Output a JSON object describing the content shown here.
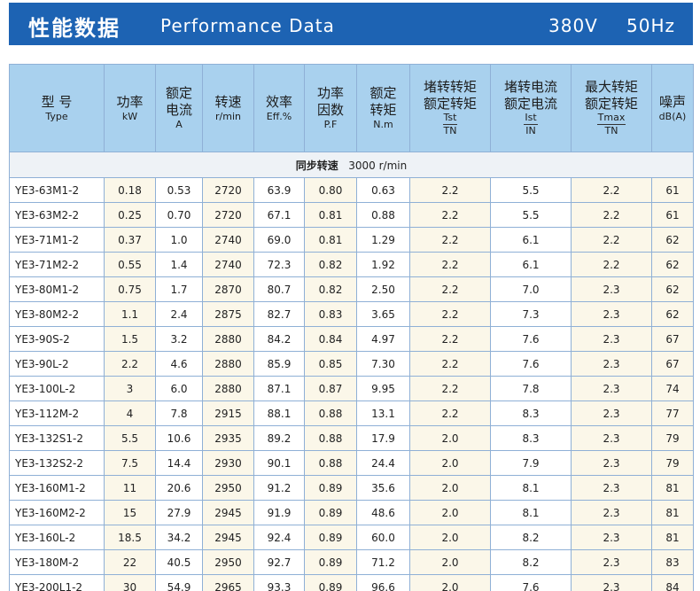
{
  "banner": {
    "title_cn": "性能数据",
    "title_en": "Performance Data",
    "voltage": "380V",
    "frequency": "50Hz"
  },
  "headers": [
    {
      "cn": "型 号",
      "en": "Type"
    },
    {
      "cn": "功率",
      "en": "kW"
    },
    {
      "cn1": "额定",
      "cn2": "电流",
      "en": "A"
    },
    {
      "cn": "转速",
      "en": "r/min"
    },
    {
      "cn": "效率",
      "en": "Eff.%"
    },
    {
      "cn1": "功率",
      "cn2": "因数",
      "en": "P.F"
    },
    {
      "cn1": "额定",
      "cn2": "转矩",
      "en": "N.m"
    },
    {
      "cn1": "堵转转矩",
      "cn2": "额定转矩",
      "top": "Tst",
      "bot": "TN"
    },
    {
      "cn1": "堵转电流",
      "cn2": "额定电流",
      "top": "Ist",
      "bot": "IN"
    },
    {
      "cn1": "最大转矩",
      "cn2": "额定转矩",
      "top": "Tmax",
      "bot": "TN"
    },
    {
      "cn": "噪声",
      "en": "dB(A)"
    }
  ],
  "sync_speed": {
    "label": "同步转速",
    "value": "3000 r/min"
  },
  "rows": [
    [
      "YE3-63M1-2",
      "0.18",
      "0.53",
      "2720",
      "63.9",
      "0.80",
      "0.63",
      "2.2",
      "5.5",
      "2.2",
      "61"
    ],
    [
      "YE3-63M2-2",
      "0.25",
      "0.70",
      "2720",
      "67.1",
      "0.81",
      "0.88",
      "2.2",
      "5.5",
      "2.2",
      "61"
    ],
    [
      "YE3-71M1-2",
      "0.37",
      "1.0",
      "2740",
      "69.0",
      "0.81",
      "1.29",
      "2.2",
      "6.1",
      "2.2",
      "62"
    ],
    [
      "YE3-71M2-2",
      "0.55",
      "1.4",
      "2740",
      "72.3",
      "0.82",
      "1.92",
      "2.2",
      "6.1",
      "2.2",
      "62"
    ],
    [
      "YE3-80M1-2",
      "0.75",
      "1.7",
      "2870",
      "80.7",
      "0.82",
      "2.50",
      "2.2",
      "7.0",
      "2.3",
      "62"
    ],
    [
      "YE3-80M2-2",
      "1.1",
      "2.4",
      "2875",
      "82.7",
      "0.83",
      "3.65",
      "2.2",
      "7.3",
      "2.3",
      "62"
    ],
    [
      "YE3-90S-2",
      "1.5",
      "3.2",
      "2880",
      "84.2",
      "0.84",
      "4.97",
      "2.2",
      "7.6",
      "2.3",
      "67"
    ],
    [
      "YE3-90L-2",
      "2.2",
      "4.6",
      "2880",
      "85.9",
      "0.85",
      "7.30",
      "2.2",
      "7.6",
      "2.3",
      "67"
    ],
    [
      "YE3-100L-2",
      "3",
      "6.0",
      "2880",
      "87.1",
      "0.87",
      "9.95",
      "2.2",
      "7.8",
      "2.3",
      "74"
    ],
    [
      "YE3-112M-2",
      "4",
      "7.8",
      "2915",
      "88.1",
      "0.88",
      "13.1",
      "2.2",
      "8.3",
      "2.3",
      "77"
    ],
    [
      "YE3-132S1-2",
      "5.5",
      "10.6",
      "2935",
      "89.2",
      "0.88",
      "17.9",
      "2.0",
      "8.3",
      "2.3",
      "79"
    ],
    [
      "YE3-132S2-2",
      "7.5",
      "14.4",
      "2930",
      "90.1",
      "0.88",
      "24.4",
      "2.0",
      "7.9",
      "2.3",
      "79"
    ],
    [
      "YE3-160M1-2",
      "11",
      "20.6",
      "2950",
      "91.2",
      "0.89",
      "35.6",
      "2.0",
      "8.1",
      "2.3",
      "81"
    ],
    [
      "YE3-160M2-2",
      "15",
      "27.9",
      "2945",
      "91.9",
      "0.89",
      "48.6",
      "2.0",
      "8.1",
      "2.3",
      "81"
    ],
    [
      "YE3-160L-2",
      "18.5",
      "34.2",
      "2945",
      "92.4",
      "0.89",
      "60.0",
      "2.0",
      "8.2",
      "2.3",
      "81"
    ],
    [
      "YE3-180M-2",
      "22",
      "40.5",
      "2950",
      "92.7",
      "0.89",
      "71.2",
      "2.0",
      "8.2",
      "2.3",
      "83"
    ],
    [
      "YE3-200L1-2",
      "30",
      "54.9",
      "2965",
      "93.3",
      "0.89",
      "96.6",
      "2.0",
      "7.6",
      "2.3",
      "84"
    ]
  ]
}
